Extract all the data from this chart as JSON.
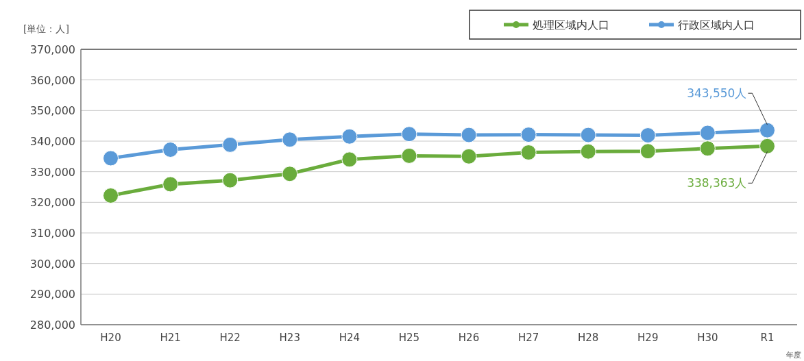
{
  "chart_data": {
    "type": "line",
    "categories": [
      "H20",
      "H21",
      "H22",
      "H23",
      "H24",
      "H25",
      "H26",
      "H27",
      "H28",
      "H29",
      "H30",
      "R1"
    ],
    "series": [
      {
        "name": "処理区域内人口",
        "color": "#6aac3c",
        "values": [
          322200,
          325900,
          327200,
          329300,
          334000,
          335200,
          335000,
          336300,
          336600,
          336700,
          337600,
          338363
        ]
      },
      {
        "name": "行政区域内人口",
        "color": "#5a9ad8",
        "values": [
          334400,
          337200,
          338800,
          340500,
          341500,
          342300,
          342000,
          342100,
          342000,
          341900,
          342700,
          343550
        ]
      }
    ],
    "ylabel": "[単位：人]",
    "xlabel": "年度",
    "ylim": [
      280000,
      370000
    ],
    "yticks": [
      {
        "value": 280000,
        "label": "280,000"
      },
      {
        "value": 290000,
        "label": "290,000"
      },
      {
        "value": 300000,
        "label": "300,000"
      },
      {
        "value": 310000,
        "label": "310,000"
      },
      {
        "value": 320000,
        "label": "320,000"
      },
      {
        "value": 330000,
        "label": "330,000"
      },
      {
        "value": 340000,
        "label": "340,000"
      },
      {
        "value": 350000,
        "label": "350,000"
      },
      {
        "value": 360000,
        "label": "360,000"
      },
      {
        "value": 370000,
        "label": "370,000"
      }
    ],
    "annotations": [
      {
        "text": "343,550人",
        "x": "R1",
        "y": 343550
      },
      {
        "text": "338,363人",
        "x": "R1",
        "y": 338363
      }
    ],
    "grid": "y",
    "legend": "top right",
    "marker": "circle",
    "line_style": "solid"
  }
}
